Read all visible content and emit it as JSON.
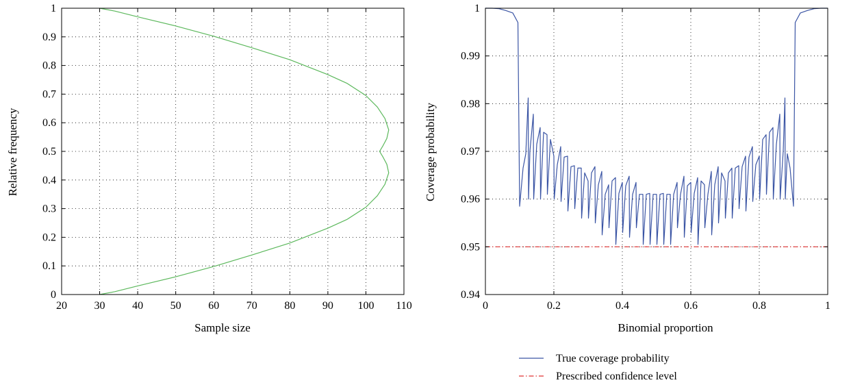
{
  "chart_data": [
    {
      "type": "line",
      "title": "",
      "xlabel": "Sample size",
      "ylabel": "Relative frequency",
      "xlim": [
        20,
        110
      ],
      "ylim": [
        0,
        1
      ],
      "xticks": [
        20,
        30,
        40,
        50,
        60,
        70,
        80,
        90,
        100,
        110
      ],
      "yticks": [
        0,
        0.1,
        0.2,
        0.3,
        0.4,
        0.5,
        0.6,
        0.7,
        0.8,
        0.9,
        1
      ],
      "xtick_labels": [
        "20",
        "30",
        "40",
        "50",
        "60",
        "70",
        "80",
        "90",
        "100",
        "110"
      ],
      "ytick_labels": [
        "0",
        "0.1",
        "0.2",
        "0.3",
        "0.4",
        "0.5",
        "0.6",
        "0.7",
        "0.8",
        "0.9",
        "1"
      ],
      "grid": true,
      "series": [
        {
          "color": "#5cb85c",
          "points": [
            [
              30,
              0
            ],
            [
              34,
              0.01
            ],
            [
              40,
              0.03
            ],
            [
              50,
              0.062
            ],
            [
              60,
              0.098
            ],
            [
              70,
              0.138
            ],
            [
              80,
              0.18
            ],
            [
              90,
              0.232
            ],
            [
              95,
              0.262
            ],
            [
              100,
              0.305
            ],
            [
              103,
              0.345
            ],
            [
              105,
              0.385
            ],
            [
              106,
              0.425
            ],
            [
              105.5,
              0.455
            ],
            [
              104.5,
              0.48
            ],
            [
              103.6,
              0.5
            ],
            [
              104.5,
              0.52
            ],
            [
              105.5,
              0.545
            ],
            [
              106,
              0.575
            ],
            [
              105,
              0.615
            ],
            [
              103,
              0.655
            ],
            [
              100,
              0.695
            ],
            [
              95,
              0.738
            ],
            [
              90,
              0.768
            ],
            [
              80,
              0.82
            ],
            [
              70,
              0.862
            ],
            [
              60,
              0.902
            ],
            [
              50,
              0.938
            ],
            [
              40,
              0.97
            ],
            [
              34,
              0.99
            ],
            [
              30,
              1
            ]
          ]
        }
      ]
    },
    {
      "type": "line",
      "title": "",
      "xlabel": "Binomial proportion",
      "ylabel": "Coverage probability",
      "xlim": [
        0,
        1
      ],
      "ylim": [
        0.94,
        1
      ],
      "xticks": [
        0,
        0.2,
        0.4,
        0.6,
        0.8,
        1
      ],
      "yticks": [
        0.94,
        0.95,
        0.96,
        0.97,
        0.98,
        0.99,
        1
      ],
      "xtick_labels": [
        "0",
        "0.2",
        "0.4",
        "0.6",
        "0.8",
        "1"
      ],
      "ytick_labels": [
        "0.94",
        "0.95",
        "0.96",
        "0.97",
        "0.98",
        "0.99",
        "1"
      ],
      "grid": true,
      "legend_position": "bottom-right-below",
      "series": [
        {
          "name": "True coverage probability",
          "color": "#3a54a4",
          "style": "solid",
          "points": [
            [
              0,
              1
            ],
            [
              0.02,
              1
            ],
            [
              0.04,
              0.9999
            ],
            [
              0.06,
              0.9995
            ],
            [
              0.08,
              0.999
            ],
            [
              0.095,
              0.997
            ],
            [
              0.1,
              0.9585
            ],
            [
              0.105,
              0.9625
            ],
            [
              0.11,
              0.9665
            ],
            [
              0.118,
              0.9695
            ],
            [
              0.125,
              0.9812
            ],
            [
              0.126,
              0.96
            ],
            [
              0.13,
              0.97
            ],
            [
              0.14,
              0.9778
            ],
            [
              0.141,
              0.96
            ],
            [
              0.15,
              0.9715
            ],
            [
              0.16,
              0.975
            ],
            [
              0.161,
              0.96
            ],
            [
              0.17,
              0.974
            ],
            [
              0.18,
              0.9735
            ],
            [
              0.181,
              0.961
            ],
            [
              0.19,
              0.9725
            ],
            [
              0.2,
              0.969
            ],
            [
              0.201,
              0.96
            ],
            [
              0.21,
              0.9672
            ],
            [
              0.22,
              0.971
            ],
            [
              0.221,
              0.9595
            ],
            [
              0.23,
              0.9688
            ],
            [
              0.24,
              0.969
            ],
            [
              0.241,
              0.9575
            ],
            [
              0.25,
              0.9668
            ],
            [
              0.26,
              0.967
            ],
            [
              0.261,
              0.958
            ],
            [
              0.27,
              0.9665
            ],
            [
              0.28,
              0.9665
            ],
            [
              0.281,
              0.956
            ],
            [
              0.29,
              0.9655
            ],
            [
              0.3,
              0.9638
            ],
            [
              0.301,
              0.956
            ],
            [
              0.31,
              0.9655
            ],
            [
              0.32,
              0.9668
            ],
            [
              0.321,
              0.955
            ],
            [
              0.33,
              0.963
            ],
            [
              0.34,
              0.9658
            ],
            [
              0.341,
              0.9525
            ],
            [
              0.35,
              0.961
            ],
            [
              0.36,
              0.963
            ],
            [
              0.361,
              0.954
            ],
            [
              0.37,
              0.9638
            ],
            [
              0.38,
              0.9645
            ],
            [
              0.381,
              0.9505
            ],
            [
              0.39,
              0.9612
            ],
            [
              0.4,
              0.9635
            ],
            [
              0.401,
              0.953
            ],
            [
              0.41,
              0.9628
            ],
            [
              0.42,
              0.9648
            ],
            [
              0.421,
              0.952
            ],
            [
              0.43,
              0.961
            ],
            [
              0.44,
              0.9635
            ],
            [
              0.441,
              0.954
            ],
            [
              0.45,
              0.961
            ],
            [
              0.46,
              0.961
            ],
            [
              0.461,
              0.9505
            ],
            [
              0.47,
              0.961
            ],
            [
              0.48,
              0.9612
            ],
            [
              0.481,
              0.9505
            ],
            [
              0.49,
              0.961
            ],
            [
              0.5,
              0.961
            ],
            [
              0.501,
              0.9505
            ],
            [
              0.51,
              0.961
            ],
            [
              0.52,
              0.9612
            ],
            [
              0.521,
              0.9505
            ],
            [
              0.53,
              0.961
            ],
            [
              0.54,
              0.961
            ],
            [
              0.541,
              0.9505
            ],
            [
              0.55,
              0.961
            ],
            [
              0.56,
              0.9635
            ],
            [
              0.561,
              0.954
            ],
            [
              0.57,
              0.961
            ],
            [
              0.58,
              0.9648
            ],
            [
              0.581,
              0.952
            ],
            [
              0.59,
              0.9628
            ],
            [
              0.6,
              0.9635
            ],
            [
              0.601,
              0.953
            ],
            [
              0.61,
              0.9612
            ],
            [
              0.62,
              0.9645
            ],
            [
              0.621,
              0.9505
            ],
            [
              0.63,
              0.9638
            ],
            [
              0.64,
              0.963
            ],
            [
              0.641,
              0.954
            ],
            [
              0.65,
              0.961
            ],
            [
              0.66,
              0.9658
            ],
            [
              0.661,
              0.9525
            ],
            [
              0.67,
              0.963
            ],
            [
              0.68,
              0.9668
            ],
            [
              0.681,
              0.955
            ],
            [
              0.69,
              0.9655
            ],
            [
              0.7,
              0.9638
            ],
            [
              0.701,
              0.956
            ],
            [
              0.71,
              0.9655
            ],
            [
              0.72,
              0.9665
            ],
            [
              0.721,
              0.956
            ],
            [
              0.73,
              0.9665
            ],
            [
              0.74,
              0.967
            ],
            [
              0.741,
              0.958
            ],
            [
              0.75,
              0.9668
            ],
            [
              0.76,
              0.969
            ],
            [
              0.761,
              0.9575
            ],
            [
              0.77,
              0.9688
            ],
            [
              0.78,
              0.971
            ],
            [
              0.781,
              0.9595
            ],
            [
              0.79,
              0.9672
            ],
            [
              0.8,
              0.969
            ],
            [
              0.801,
              0.96
            ],
            [
              0.81,
              0.9725
            ],
            [
              0.82,
              0.9735
            ],
            [
              0.821,
              0.961
            ],
            [
              0.83,
              0.974
            ],
            [
              0.84,
              0.975
            ],
            [
              0.841,
              0.96
            ],
            [
              0.85,
              0.9715
            ],
            [
              0.86,
              0.9778
            ],
            [
              0.861,
              0.96
            ],
            [
              0.87,
              0.97
            ],
            [
              0.875,
              0.9812
            ],
            [
              0.876,
              0.96
            ],
            [
              0.882,
              0.9695
            ],
            [
              0.89,
              0.9665
            ],
            [
              0.895,
              0.9625
            ],
            [
              0.9,
              0.9585
            ],
            [
              0.905,
              0.997
            ],
            [
              0.92,
              0.999
            ],
            [
              0.94,
              0.9995
            ],
            [
              0.96,
              0.9999
            ],
            [
              0.98,
              1
            ],
            [
              1,
              1
            ]
          ]
        },
        {
          "name": "Prescribed confidence level",
          "color": "#e03030",
          "style": "dashdot",
          "points": [
            [
              0,
              0.95
            ],
            [
              1,
              0.95
            ]
          ]
        }
      ]
    }
  ]
}
